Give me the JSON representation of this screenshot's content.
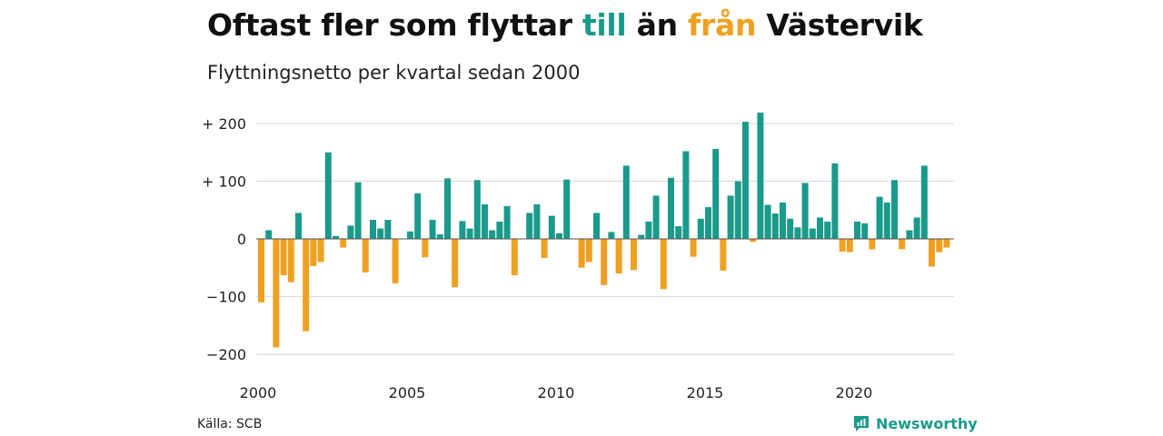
{
  "title": {
    "part1": "Oftast fler som flyttar ",
    "part2": "till",
    "part3": " än ",
    "part4": "från",
    "part5": " Västervik"
  },
  "subtitle": "Flyttningsnetto per kvartal sedan 2000",
  "source": "Källa: SCB",
  "logo_text": "Newsworthy",
  "colors": {
    "positive": "#1a9a8b",
    "negative": "#f0a021",
    "grid": "#dddddd"
  },
  "chart_data": {
    "type": "bar",
    "title": "Oftast fler som flyttar till än från Västervik",
    "subtitle": "Flyttningsnetto per kvartal sedan 2000",
    "x_start": "2000 Q1",
    "x_ticks": [
      "2000",
      "2005",
      "2010",
      "2015",
      "2020"
    ],
    "y_ticks": [
      {
        "value": 200,
        "label": "+ 200"
      },
      {
        "value": 100,
        "label": "+ 100"
      },
      {
        "value": 0,
        "label": "0"
      },
      {
        "value": -100,
        "label": "−100"
      },
      {
        "value": -200,
        "label": "−200"
      }
    ],
    "ylim": [
      -220,
      220
    ],
    "grid": true,
    "values": [
      -110,
      15,
      -188,
      -63,
      -75,
      45,
      -160,
      -47,
      -40,
      150,
      5,
      -15,
      23,
      98,
      -58,
      33,
      18,
      33,
      -77,
      0,
      13,
      79,
      -32,
      33,
      8,
      105,
      -84,
      31,
      18,
      102,
      60,
      15,
      30,
      57,
      -63,
      0,
      45,
      60,
      -33,
      40,
      10,
      103,
      0,
      -50,
      -40,
      45,
      -80,
      12,
      -60,
      127,
      -54,
      7,
      30,
      75,
      -87,
      106,
      22,
      152,
      -31,
      35,
      55,
      156,
      -55,
      75,
      100,
      203,
      -5,
      219,
      59,
      44,
      63,
      35,
      20,
      97,
      18,
      37,
      30,
      131,
      -22,
      -23,
      30,
      27,
      -18,
      73,
      63,
      102,
      -18,
      15,
      37,
      127,
      -48,
      -23,
      -15
    ]
  }
}
